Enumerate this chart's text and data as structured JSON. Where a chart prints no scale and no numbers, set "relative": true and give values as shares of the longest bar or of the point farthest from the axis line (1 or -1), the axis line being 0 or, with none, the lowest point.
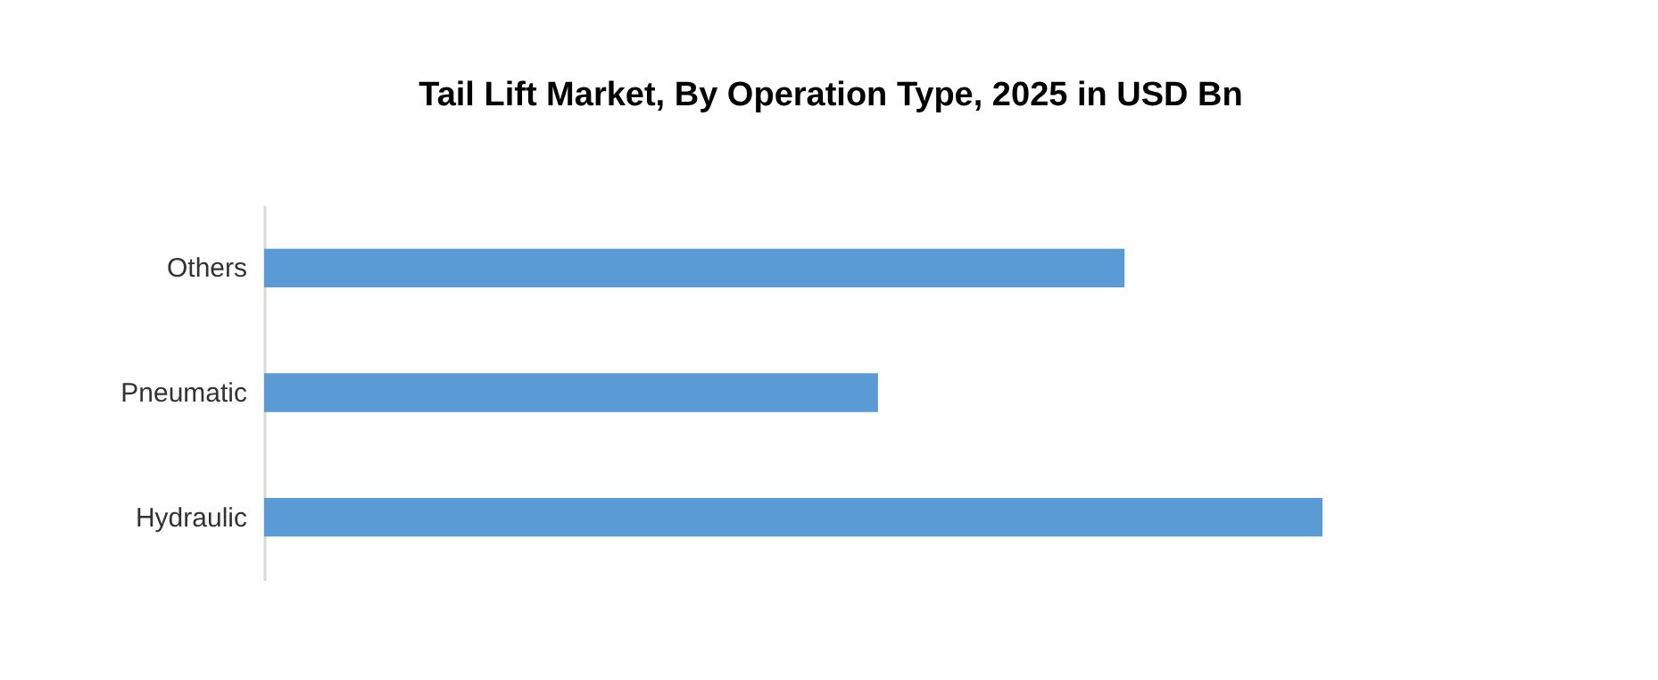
{
  "chart_data": {
    "type": "bar",
    "orientation": "horizontal",
    "relative": true,
    "title": "Tail Lift Market, By Operation Type, 2025 in USD Bn",
    "categories": [
      "Others",
      "Pneumatic",
      "Hydraulic"
    ],
    "series": [
      {
        "color": "#5b9bd5",
        "values": [
          0.813,
          0.58,
          1
        ]
      }
    ]
  }
}
